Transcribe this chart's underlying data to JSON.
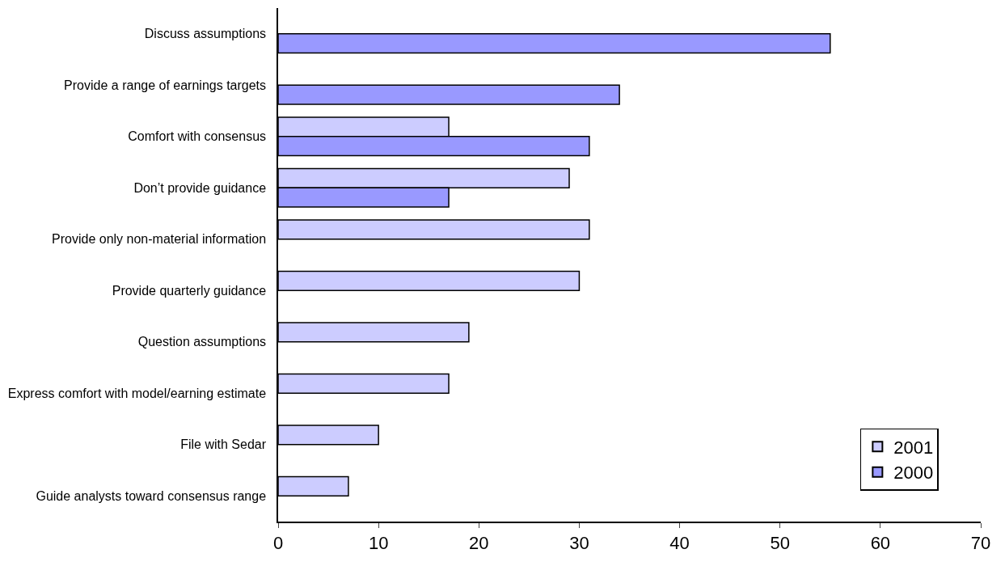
{
  "chart_data": {
    "type": "bar",
    "orientation": "horizontal",
    "categories": [
      "Discuss assumptions",
      "Provide a range of earnings targets",
      "Comfort with consensus",
      "Don’t provide guidance",
      "Provide only non-material information",
      "Provide quarterly guidance",
      "Question assumptions",
      "Express comfort with model/earning estimate",
      "File with Sedar",
      "Guide analysts toward consensus range"
    ],
    "series": [
      {
        "name": "2001",
        "color": "#ccccff",
        "values": [
          null,
          null,
          17,
          29,
          31,
          30,
          19,
          17,
          10,
          7
        ]
      },
      {
        "name": "2000",
        "color": "#9999ff",
        "values": [
          55,
          34,
          31,
          17,
          null,
          null,
          null,
          null,
          null,
          null
        ]
      }
    ],
    "xlim": [
      0,
      70
    ],
    "xticks": [
      0,
      10,
      20,
      30,
      40,
      50,
      60,
      70
    ],
    "legend": "bottom right"
  }
}
